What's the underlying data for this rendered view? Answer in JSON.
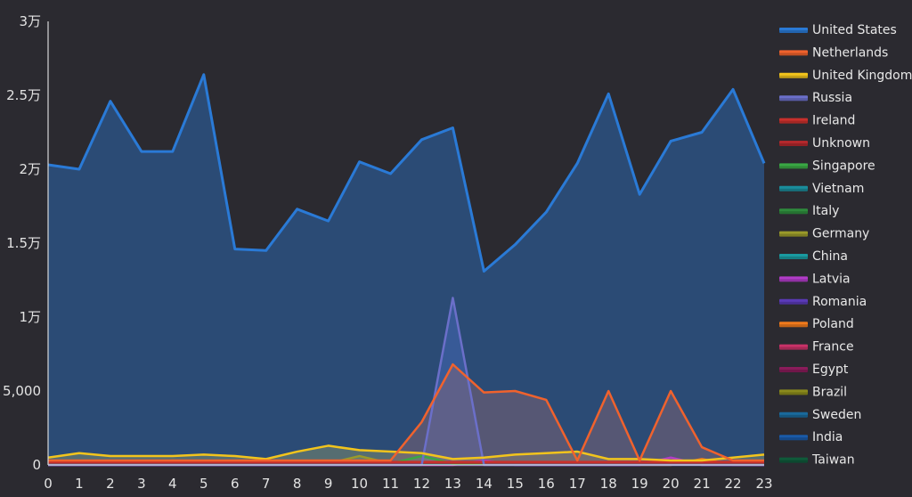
{
  "chart_data": {
    "type": "area",
    "x": [
      "0",
      "1",
      "2",
      "3",
      "4",
      "5",
      "6",
      "7",
      "8",
      "9",
      "10",
      "11",
      "12",
      "13",
      "14",
      "15",
      "16",
      "17",
      "18",
      "19",
      "20",
      "21",
      "22",
      "23"
    ],
    "ylim": [
      0,
      30000
    ],
    "y_ticks": [
      {
        "value": 0,
        "label": "0"
      },
      {
        "value": 5000,
        "label": "5,000"
      },
      {
        "value": 10000,
        "label": "1万"
      },
      {
        "value": 15000,
        "label": "1.5万"
      },
      {
        "value": 20000,
        "label": "2万"
      },
      {
        "value": 25000,
        "label": "2.5万"
      },
      {
        "value": 30000,
        "label": "3万"
      }
    ],
    "legend_position": "right",
    "series": [
      {
        "name": "United States",
        "color": "#2a7ad6",
        "values": [
          20300,
          20000,
          24600,
          21200,
          21200,
          26400,
          14600,
          14500,
          17300,
          16500,
          20500,
          19700,
          22000,
          22800,
          13100,
          14900,
          17100,
          20400,
          25100,
          18300,
          21900,
          22500,
          25400,
          20400
        ]
      },
      {
        "name": "Netherlands",
        "color": "#f0622d",
        "values": [
          300,
          300,
          300,
          300,
          300,
          300,
          300,
          300,
          300,
          300,
          300,
          300,
          2900,
          6800,
          4900,
          5000,
          4400,
          300,
          5000,
          300,
          5000,
          1200,
          300,
          300
        ]
      },
      {
        "name": "United Kingdom",
        "color": "#f2c41c",
        "values": [
          500,
          800,
          600,
          600,
          600,
          700,
          600,
          400,
          900,
          1300,
          1000,
          900,
          800,
          400,
          500,
          700,
          800,
          900,
          400,
          400,
          300,
          300,
          500,
          700
        ]
      },
      {
        "name": "Russia",
        "color": "#6b6fc9",
        "values": [
          0,
          0,
          0,
          0,
          0,
          0,
          0,
          0,
          0,
          0,
          0,
          0,
          0,
          11300,
          0,
          0,
          0,
          0,
          0,
          0,
          0,
          0,
          0,
          0
        ]
      },
      {
        "name": "Ireland",
        "color": "#c9302c",
        "values": [
          200,
          200,
          200,
          200,
          200,
          200,
          200,
          200,
          200,
          200,
          200,
          200,
          200,
          200,
          200,
          200,
          200,
          200,
          200,
          200,
          200,
          200,
          200,
          200
        ]
      },
      {
        "name": "Unknown",
        "color": "#b2282c",
        "values": [
          150,
          150,
          150,
          150,
          150,
          150,
          150,
          150,
          150,
          150,
          150,
          150,
          150,
          150,
          150,
          150,
          150,
          150,
          150,
          150,
          150,
          150,
          150,
          150
        ]
      },
      {
        "name": "Singapore",
        "color": "#3aa844",
        "values": [
          100,
          100,
          100,
          100,
          100,
          100,
          100,
          100,
          100,
          100,
          100,
          100,
          600,
          100,
          100,
          100,
          100,
          100,
          100,
          100,
          100,
          100,
          100,
          100
        ]
      },
      {
        "name": "Vietnam",
        "color": "#1a8d9c",
        "values": [
          100,
          100,
          100,
          100,
          100,
          100,
          100,
          200,
          100,
          100,
          100,
          100,
          100,
          100,
          100,
          100,
          100,
          100,
          100,
          100,
          100,
          100,
          100,
          100
        ]
      },
      {
        "name": "Italy",
        "color": "#2e8b3c",
        "values": [
          50,
          50,
          50,
          50,
          50,
          50,
          50,
          50,
          50,
          50,
          50,
          50,
          50,
          50,
          50,
          50,
          50,
          50,
          50,
          50,
          50,
          50,
          50,
          50
        ]
      },
      {
        "name": "Germany",
        "color": "#9a9a2a",
        "values": [
          100,
          100,
          100,
          100,
          300,
          100,
          100,
          100,
          100,
          100,
          600,
          100,
          100,
          100,
          100,
          100,
          100,
          100,
          100,
          100,
          100,
          100,
          100,
          100
        ]
      },
      {
        "name": "China",
        "color": "#1a9aa0",
        "values": [
          50,
          50,
          50,
          50,
          50,
          50,
          50,
          50,
          50,
          50,
          50,
          50,
          50,
          50,
          50,
          50,
          50,
          50,
          50,
          50,
          50,
          50,
          50,
          50
        ]
      },
      {
        "name": "Latvia",
        "color": "#b23cc8",
        "values": [
          0,
          0,
          0,
          0,
          0,
          0,
          0,
          0,
          0,
          0,
          0,
          0,
          0,
          0,
          300,
          0,
          0,
          0,
          0,
          0,
          500,
          0,
          0,
          0
        ]
      },
      {
        "name": "Romania",
        "color": "#5b3ab8",
        "values": [
          0,
          0,
          0,
          0,
          0,
          0,
          0,
          0,
          0,
          0,
          0,
          0,
          0,
          0,
          0,
          0,
          0,
          0,
          0,
          0,
          200,
          0,
          0,
          0
        ]
      },
      {
        "name": "Poland",
        "color": "#f07a1c",
        "values": [
          0,
          0,
          0,
          0,
          0,
          0,
          0,
          0,
          0,
          0,
          0,
          0,
          0,
          0,
          0,
          0,
          0,
          0,
          0,
          0,
          0,
          400,
          0,
          0
        ]
      },
      {
        "name": "France",
        "color": "#c83268",
        "values": [
          30,
          30,
          30,
          30,
          30,
          30,
          30,
          30,
          30,
          30,
          30,
          30,
          30,
          30,
          30,
          30,
          30,
          30,
          30,
          30,
          30,
          30,
          30,
          30
        ]
      },
      {
        "name": "Egypt",
        "color": "#8a1c5a",
        "values": [
          20,
          20,
          20,
          20,
          20,
          20,
          20,
          20,
          20,
          20,
          20,
          20,
          20,
          20,
          20,
          20,
          20,
          20,
          20,
          20,
          20,
          20,
          20,
          20
        ]
      },
      {
        "name": "Brazil",
        "color": "#8a8a1c",
        "values": [
          20,
          20,
          20,
          20,
          20,
          20,
          20,
          20,
          20,
          20,
          20,
          20,
          20,
          20,
          20,
          20,
          20,
          20,
          20,
          20,
          20,
          20,
          20,
          20
        ]
      },
      {
        "name": "Sweden",
        "color": "#1a6a9c",
        "values": [
          20,
          20,
          20,
          20,
          20,
          20,
          20,
          20,
          20,
          20,
          20,
          20,
          20,
          20,
          20,
          20,
          20,
          20,
          20,
          20,
          20,
          20,
          20,
          20
        ]
      },
      {
        "name": "India",
        "color": "#1a5aa8",
        "values": [
          50,
          50,
          50,
          50,
          50,
          50,
          50,
          50,
          50,
          50,
          50,
          50,
          50,
          50,
          50,
          50,
          50,
          50,
          50,
          50,
          50,
          50,
          50,
          200
        ]
      },
      {
        "name": "Taiwan",
        "color": "#0f5a3a",
        "values": [
          20,
          20,
          20,
          20,
          20,
          20,
          20,
          20,
          20,
          20,
          20,
          20,
          20,
          20,
          20,
          20,
          20,
          20,
          20,
          20,
          20,
          20,
          20,
          20
        ]
      }
    ]
  }
}
